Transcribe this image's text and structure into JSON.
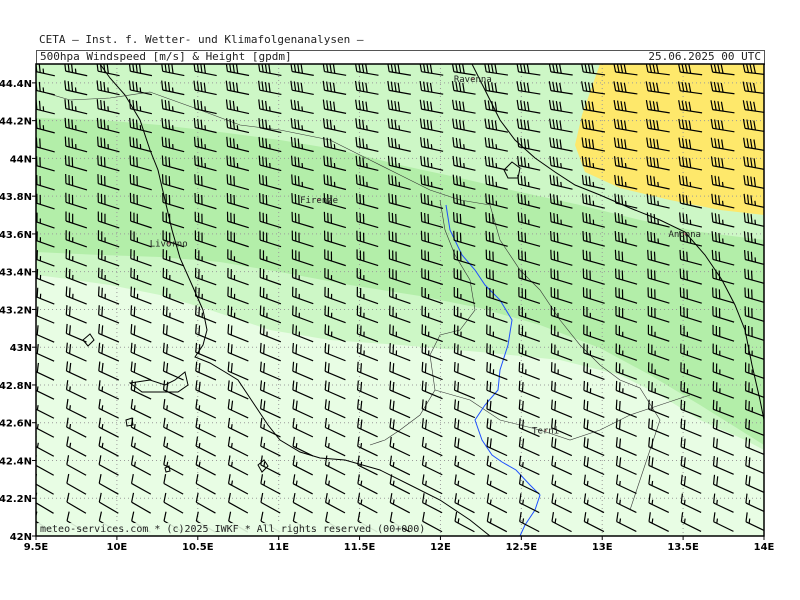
{
  "header": {
    "provider": "CETA – Inst. f. Wetter- und Klimafolgenanalysen –",
    "title": "500hpa Windspeed [m/s] & Height [gpdm]",
    "datetime": "25.06.2025 00 UTC"
  },
  "footer": {
    "credit": "meteo-services.com * (c)2025 IWKF * All rights reserved (00+000)"
  },
  "axes": {
    "lon_range": [
      9.5,
      14.0
    ],
    "lat_range": [
      42.0,
      44.5
    ],
    "x_ticks": [
      {
        "value": 9.5,
        "label": "9.5E"
      },
      {
        "value": 10.0,
        "label": "10E"
      },
      {
        "value": 10.5,
        "label": "10.5E"
      },
      {
        "value": 11.0,
        "label": "11E"
      },
      {
        "value": 11.5,
        "label": "11.5E"
      },
      {
        "value": 12.0,
        "label": "12E"
      },
      {
        "value": 12.5,
        "label": "12.5E"
      },
      {
        "value": 13.0,
        "label": "13E"
      },
      {
        "value": 13.5,
        "label": "13.5E"
      },
      {
        "value": 14.0,
        "label": "14E"
      }
    ],
    "y_ticks": [
      {
        "value": 44.4,
        "label": "44.4N"
      },
      {
        "value": 44.2,
        "label": "44.2N"
      },
      {
        "value": 44.0,
        "label": "44N"
      },
      {
        "value": 43.8,
        "label": "43.8N"
      },
      {
        "value": 43.6,
        "label": "43.6N"
      },
      {
        "value": 43.4,
        "label": "43.4N"
      },
      {
        "value": 43.2,
        "label": "43.2N"
      },
      {
        "value": 43.0,
        "label": "43N"
      },
      {
        "value": 42.8,
        "label": "42.8N"
      },
      {
        "value": 42.6,
        "label": "42.6N"
      },
      {
        "value": 42.4,
        "label": "42.4N"
      },
      {
        "value": 42.2,
        "label": "42.2N"
      },
      {
        "value": 42.0,
        "label": "42N"
      }
    ],
    "grid": true
  },
  "cities": [
    {
      "name": "Ravenna",
      "lon": 12.2,
      "lat": 44.42
    },
    {
      "name": "Firenze",
      "lon": 11.25,
      "lat": 43.78
    },
    {
      "name": "Livorno",
      "lon": 10.32,
      "lat": 43.55
    },
    {
      "name": "Ancona",
      "lon": 13.51,
      "lat": 43.6
    },
    {
      "name": "Terni",
      "lon": 12.65,
      "lat": 42.56
    }
  ],
  "colors": {
    "wind_light": "#e8fde4",
    "wind_mid": "#cdf7c6",
    "wind_strong": "#b3eea9",
    "wind_max": "#fee86b",
    "barbs": "#000000",
    "coast": "#000000",
    "border": "#333333",
    "river": "#1e50ff",
    "grid": "#9a9a9a"
  },
  "wind_field": {
    "description_levels": [
      "light",
      "mid",
      "strong",
      "max"
    ],
    "barb_spacing_deg": 0.2
  }
}
